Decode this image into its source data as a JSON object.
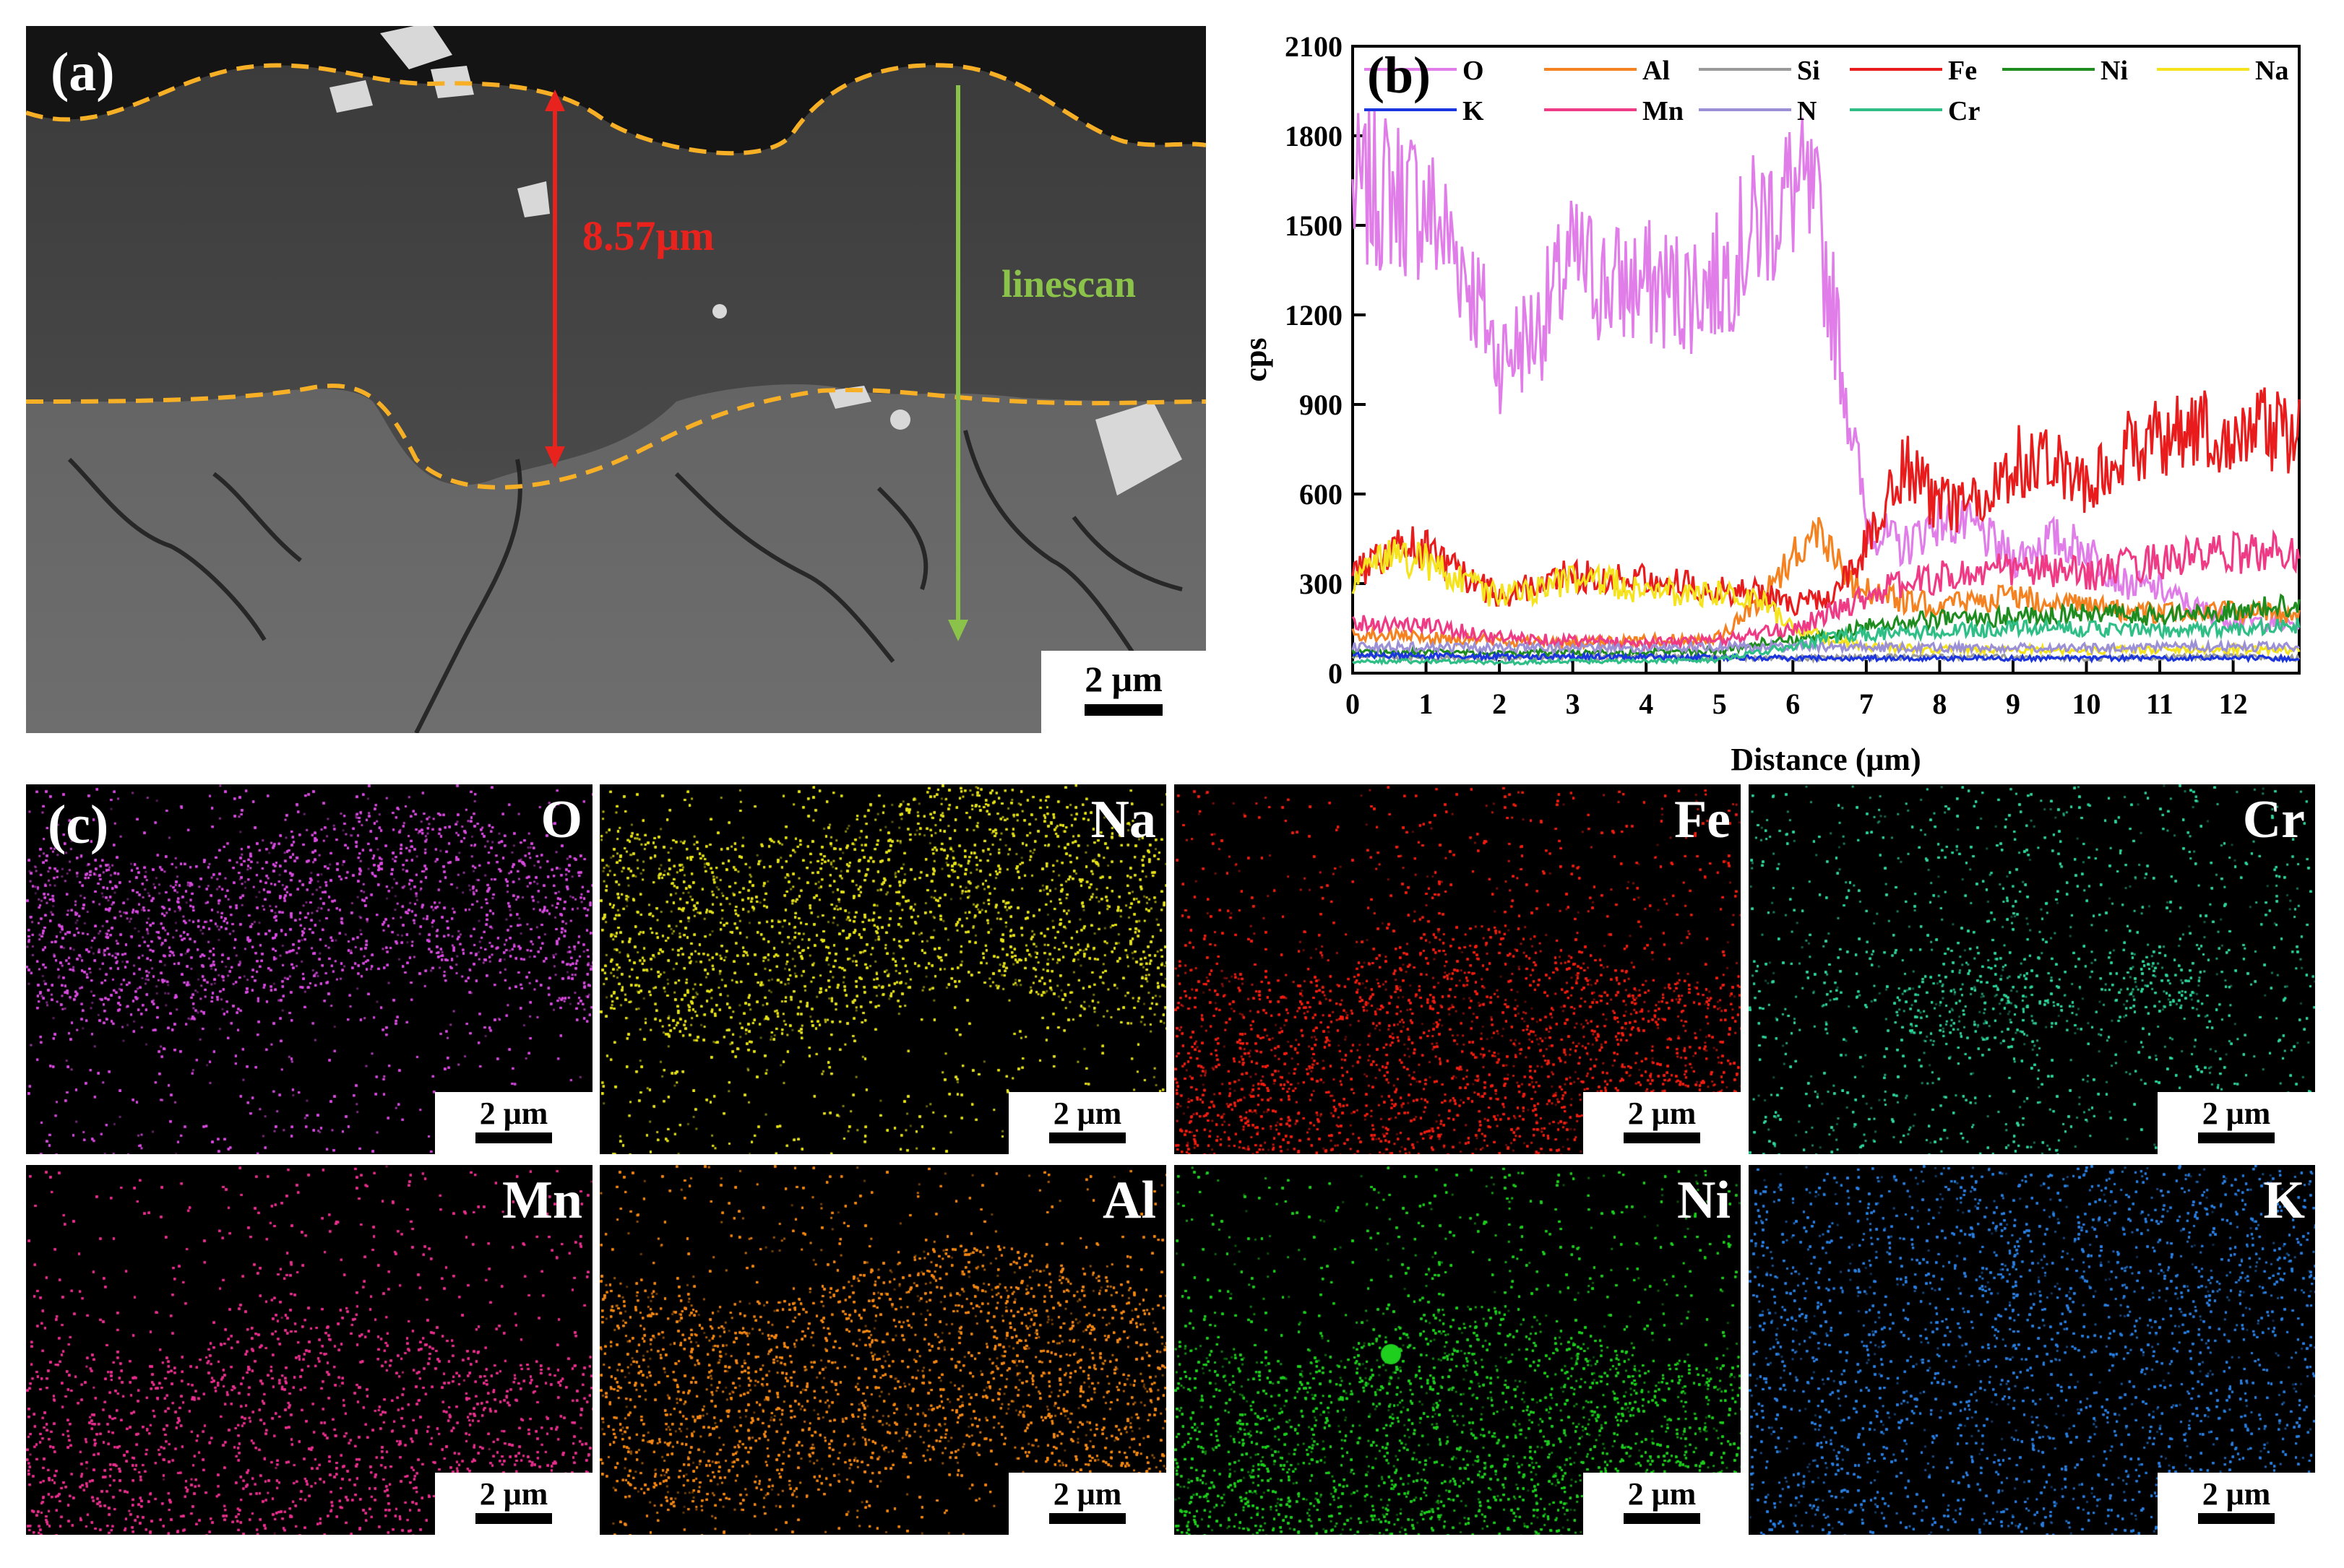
{
  "panel_a": {
    "label": "(a)",
    "thickness_label": "8.57μm",
    "linescan_label": "linescan",
    "scalebar": "2 μm",
    "colors": {
      "boundary": "#f7b026",
      "thickness_arrow": "#e8231e",
      "linescan_arrow": "#8bc34a"
    }
  },
  "panel_b": {
    "label": "(b)"
  },
  "panel_c": {
    "label": "(c)",
    "maps": [
      {
        "element": "O",
        "color": "#d84be0",
        "scalebar": "2 μm"
      },
      {
        "element": "Na",
        "color": "#e6e21a",
        "scalebar": "2 μm"
      },
      {
        "element": "Fe",
        "color": "#f01f12",
        "scalebar": "2 μm"
      },
      {
        "element": "Cr",
        "color": "#2fd69a",
        "scalebar": "2 μm"
      },
      {
        "element": "Mn",
        "color": "#e8308e",
        "scalebar": "2 μm"
      },
      {
        "element": "Al",
        "color": "#f38814",
        "scalebar": "2 μm"
      },
      {
        "element": "Ni",
        "color": "#1ecf1e",
        "scalebar": "2 μm"
      },
      {
        "element": "K",
        "color": "#2a7fe0",
        "scalebar": "2 μm"
      }
    ]
  },
  "chart_data": {
    "type": "line",
    "title": "",
    "xlabel": "Distance (μm)",
    "ylabel": "cps",
    "xlim": [
      0,
      12.9
    ],
    "ylim": [
      0,
      2100
    ],
    "xticks": [
      0,
      1,
      2,
      3,
      4,
      5,
      6,
      7,
      8,
      9,
      10,
      11,
      12
    ],
    "yticks": [
      0,
      300,
      600,
      900,
      1200,
      1500,
      1800,
      2100
    ],
    "legend_position": "top",
    "series": [
      {
        "name": "O",
        "color": "#e07de8",
        "x": [
          0,
          0.5,
          1,
          1.5,
          2,
          2.5,
          3,
          3.5,
          4,
          4.5,
          5,
          5.5,
          6,
          6.3,
          6.6,
          7,
          7.5,
          8,
          8.5,
          9,
          9.5,
          10,
          10.5,
          11,
          11.5,
          12,
          12.9
        ],
        "values": [
          1600,
          1620,
          1560,
          1380,
          1050,
          1150,
          1380,
          1300,
          1300,
          1280,
          1320,
          1500,
          1620,
          1550,
          1150,
          500,
          420,
          520,
          480,
          380,
          450,
          420,
          300,
          280,
          220,
          180,
          160
        ]
      },
      {
        "name": "Al",
        "color": "#f58220",
        "x": [
          0,
          1,
          2,
          3,
          4,
          5,
          5.5,
          6,
          6.4,
          6.8,
          7.5,
          8,
          9,
          10,
          11,
          12,
          12.9
        ],
        "values": [
          130,
          120,
          110,
          100,
          110,
          120,
          230,
          400,
          480,
          300,
          240,
          230,
          260,
          220,
          200,
          210,
          200
        ]
      },
      {
        "name": "Si",
        "color": "#9a9a9a",
        "x": [
          0,
          2,
          4,
          6,
          8,
          10,
          12,
          12.9
        ],
        "values": [
          55,
          50,
          55,
          50,
          55,
          50,
          55,
          50
        ]
      },
      {
        "name": "Fe",
        "color": "#e81c1c",
        "x": [
          0,
          0.5,
          1,
          1.5,
          2,
          2.5,
          3,
          3.5,
          4,
          4.5,
          5,
          5.5,
          6,
          6.5,
          7,
          7.5,
          8,
          8.5,
          9,
          9.5,
          10,
          10.5,
          11,
          11.5,
          12,
          12.5,
          12.9
        ],
        "values": [
          320,
          420,
          420,
          320,
          260,
          300,
          330,
          310,
          330,
          300,
          280,
          270,
          230,
          250,
          420,
          700,
          560,
          560,
          700,
          750,
          620,
          750,
          780,
          820,
          800,
          820,
          800
        ]
      },
      {
        "name": "Ni",
        "color": "#1e8c1e",
        "x": [
          0,
          1,
          2,
          3,
          4,
          5,
          5.8,
          6.5,
          7,
          8,
          9,
          10,
          11,
          12,
          12.9
        ],
        "values": [
          70,
          70,
          65,
          70,
          70,
          75,
          110,
          120,
          160,
          180,
          190,
          200,
          190,
          210,
          230
        ]
      },
      {
        "name": "Na",
        "color": "#f4e31d",
        "x": [
          0,
          0.5,
          1,
          1.5,
          2,
          2.5,
          3,
          3.5,
          4,
          4.5,
          5,
          5.5,
          6,
          6.5,
          7,
          8,
          9,
          10,
          11,
          12,
          12.9
        ],
        "values": [
          300,
          400,
          380,
          300,
          260,
          280,
          320,
          300,
          280,
          260,
          270,
          250,
          160,
          110,
          90,
          80,
          80,
          75,
          80,
          80,
          75
        ]
      },
      {
        "name": "K",
        "color": "#1a35e0",
        "x": [
          0,
          2,
          4,
          6,
          8,
          10,
          12,
          12.9
        ],
        "values": [
          60,
          55,
          55,
          50,
          50,
          50,
          50,
          50
        ]
      },
      {
        "name": "Mn",
        "color": "#ef3a86",
        "x": [
          0,
          1,
          2,
          3,
          4,
          5,
          6,
          6.5,
          7,
          7.5,
          8,
          9,
          10,
          11,
          12,
          12.9
        ],
        "values": [
          170,
          160,
          120,
          110,
          100,
          110,
          150,
          200,
          260,
          300,
          320,
          350,
          330,
          380,
          400,
          410
        ]
      },
      {
        "name": "N",
        "color": "#9b8fd6",
        "x": [
          0,
          2,
          4,
          6,
          8,
          10,
          12,
          12.9
        ],
        "values": [
          90,
          85,
          85,
          90,
          85,
          85,
          90,
          85
        ]
      },
      {
        "name": "Cr",
        "color": "#2fbf86",
        "x": [
          0,
          1,
          2,
          3,
          4,
          5,
          6,
          6.5,
          7,
          8,
          9,
          10,
          11,
          12,
          12.9
        ],
        "values": [
          40,
          40,
          35,
          40,
          40,
          45,
          90,
          120,
          130,
          140,
          150,
          150,
          140,
          150,
          160
        ]
      }
    ]
  }
}
